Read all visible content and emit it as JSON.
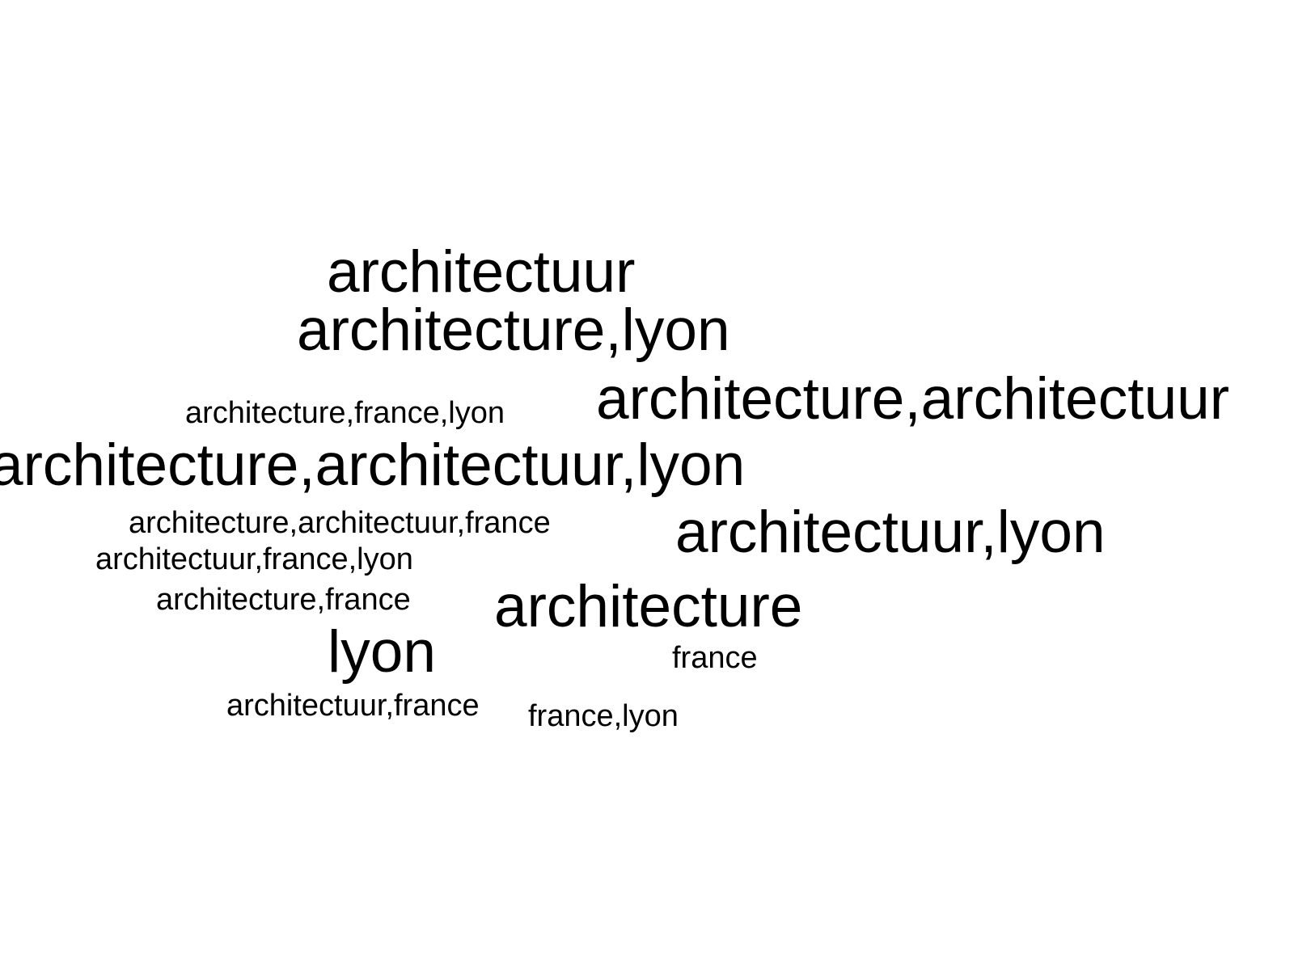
{
  "word_cloud": {
    "background_color": "#ffffff",
    "text_color": "#000000",
    "words": [
      {
        "text": "architectuur",
        "size": "large"
      },
      {
        "text": "architecture,lyon",
        "size": "large"
      },
      {
        "text": "architecture,architectuur",
        "size": "large"
      },
      {
        "text": "architecture,france,lyon",
        "size": "small"
      },
      {
        "text": "architecture,architectuur,lyon",
        "size": "large"
      },
      {
        "text": "architecture,architectuur,france",
        "size": "small"
      },
      {
        "text": "architectuur,lyon",
        "size": "large"
      },
      {
        "text": "architectuur,france,lyon",
        "size": "small"
      },
      {
        "text": "architecture,france",
        "size": "small"
      },
      {
        "text": "architecture",
        "size": "large"
      },
      {
        "text": "lyon",
        "size": "large"
      },
      {
        "text": "france",
        "size": "small"
      },
      {
        "text": "architectuur,france",
        "size": "small"
      },
      {
        "text": "france,lyon",
        "size": "small"
      }
    ]
  }
}
